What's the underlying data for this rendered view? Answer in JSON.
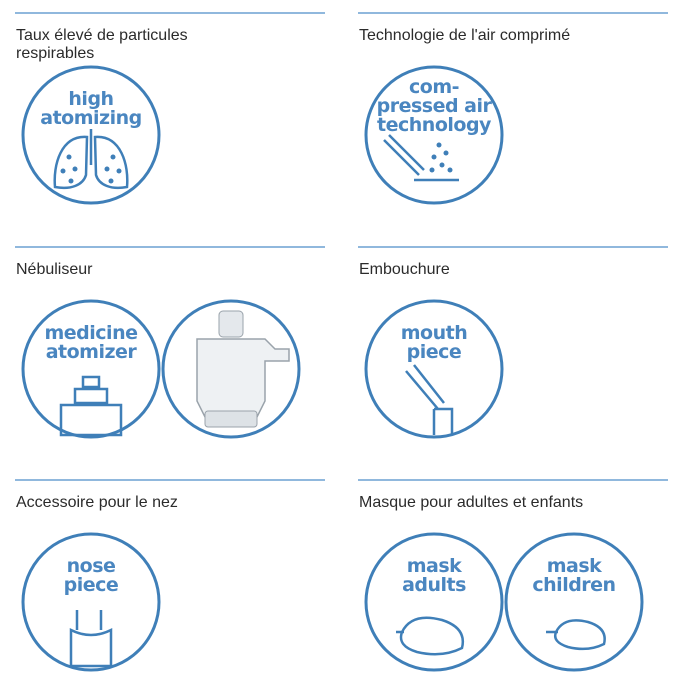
{
  "features": [
    {
      "title": [
        "Taux élevé de particules",
        "respirables"
      ],
      "icons": [
        {
          "lines": [
            "high",
            "atomizing"
          ]
        }
      ]
    },
    {
      "title": [
        "Technologie de l'air comprimé"
      ],
      "icons": [
        {
          "lines": [
            "com-",
            "pressed air",
            "technology"
          ]
        }
      ]
    },
    {
      "title": [
        "Nébuliseur"
      ],
      "icons": [
        {
          "lines": [
            "medicine",
            "atomizer"
          ]
        },
        {
          "lines": []
        }
      ]
    },
    {
      "title": [
        "Embouchure"
      ],
      "icons": [
        {
          "lines": [
            "mouth",
            "piece"
          ]
        }
      ]
    },
    {
      "title": [
        "Accessoire pour le nez"
      ],
      "icons": [
        {
          "lines": [
            "nose",
            "piece"
          ]
        }
      ]
    },
    {
      "title": [
        "Masque pour adultes et enfants"
      ],
      "icons": [
        {
          "lines": [
            "mask",
            "adults"
          ]
        },
        {
          "lines": [
            "mask",
            "children"
          ]
        }
      ]
    }
  ]
}
